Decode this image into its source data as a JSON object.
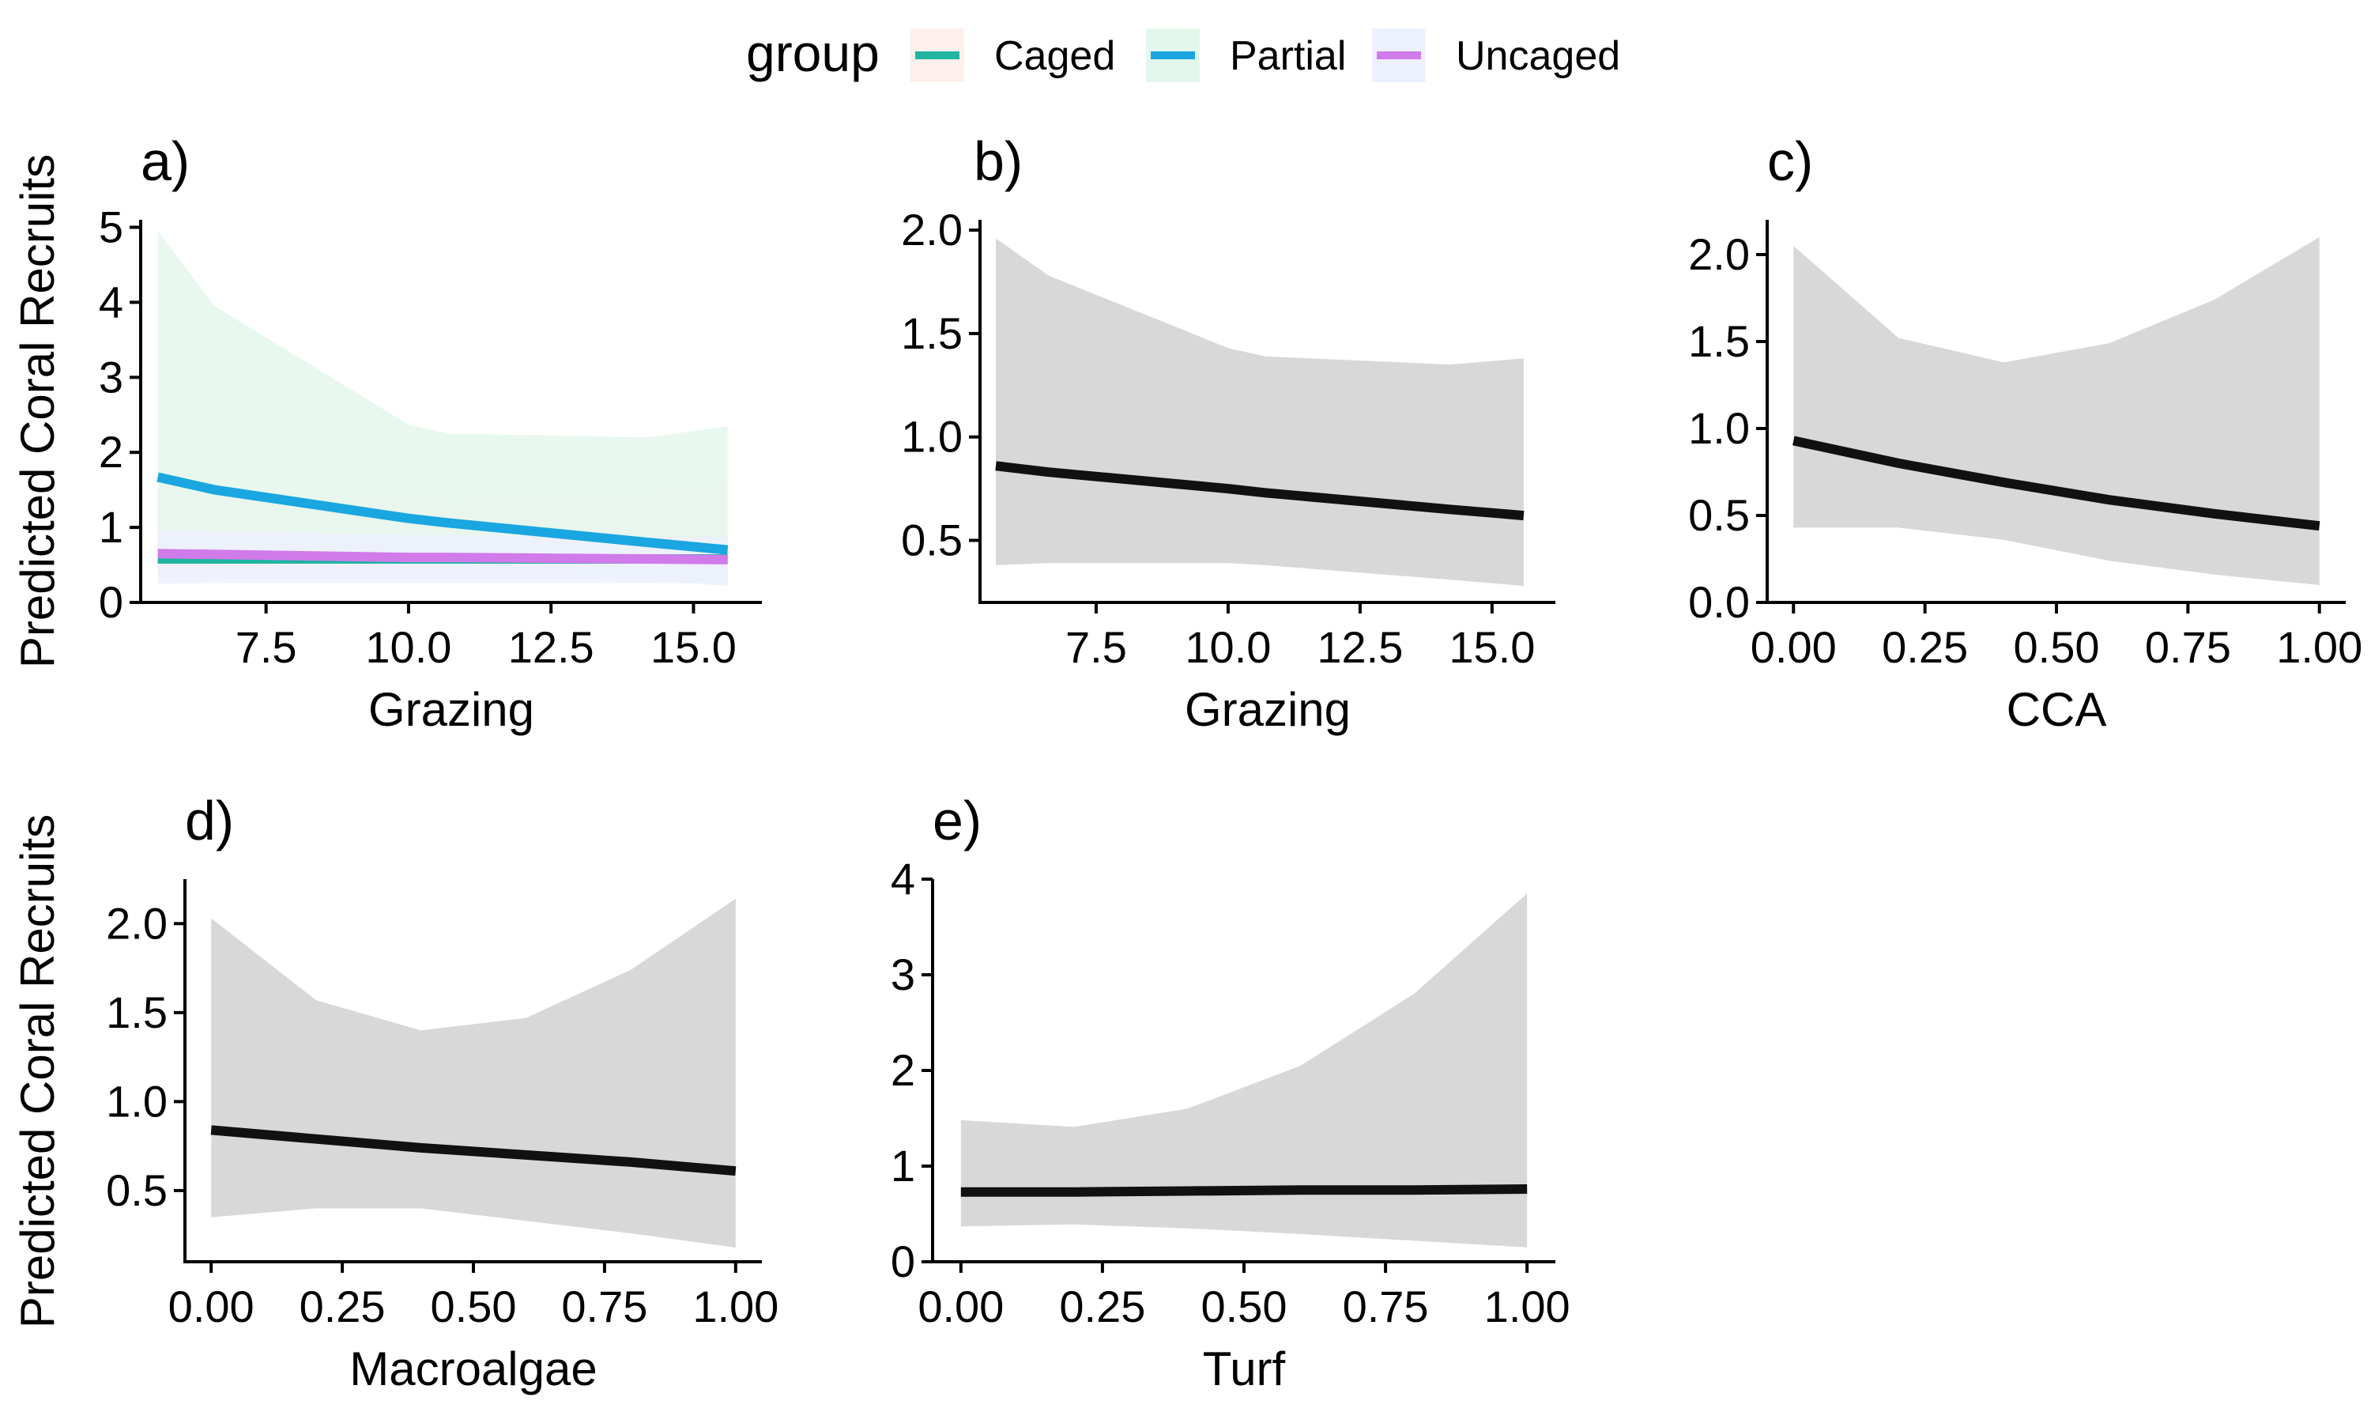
{
  "legend": {
    "title": "group",
    "entries": [
      {
        "label": "Caged",
        "line_color": "#1FB5A0",
        "fill_color": "#FDEFEC"
      },
      {
        "label": "Partial",
        "line_color": "#1AA6E0",
        "fill_color": "#E4F7EC"
      },
      {
        "label": "Uncaged",
        "line_color": "#D17AEA",
        "fill_color": "#EDF0FD"
      }
    ]
  },
  "colors": {
    "band": "#D8D8D8",
    "line": "#111111",
    "axis": "#000000"
  },
  "chart_data": [
    {
      "panel": "a)",
      "type": "line",
      "xlabel": "Grazing",
      "ylabel": "Predicted Coral Recruits",
      "xlim": [
        5.3,
        16.2
      ],
      "ylim": [
        0,
        5.1
      ],
      "xticks": [
        7.5,
        10.0,
        12.5,
        15.0
      ],
      "xtick_labels": [
        "7.5",
        "10.0",
        "12.5",
        "15.0"
      ],
      "yticks": [
        0,
        1,
        2,
        3,
        4,
        5
      ],
      "ytick_labels": [
        "0",
        "1",
        "2",
        "3",
        "4",
        "5"
      ],
      "x": [
        5.6,
        6.6,
        10.0,
        10.7,
        14.2,
        15.6
      ],
      "series": [
        {
          "name": "Caged",
          "values": [
            0.58,
            0.58,
            0.58,
            0.58,
            0.58,
            0.58
          ],
          "lower": [
            0.33,
            0.34,
            0.36,
            0.36,
            0.35,
            0.33
          ],
          "upper": [
            1.6,
            1.52,
            1.38,
            1.36,
            1.45,
            1.58
          ]
        },
        {
          "name": "Partial",
          "values": [
            1.67,
            1.5,
            1.12,
            1.06,
            0.8,
            0.7
          ],
          "lower": [
            0.62,
            0.55,
            0.5,
            0.48,
            0.3,
            0.22
          ],
          "upper": [
            4.95,
            3.95,
            2.37,
            2.25,
            2.2,
            2.35
          ]
        },
        {
          "name": "Uncaged",
          "values": [
            0.65,
            0.64,
            0.6,
            0.6,
            0.58,
            0.57
          ],
          "lower": [
            0.25,
            0.26,
            0.26,
            0.26,
            0.26,
            0.25
          ],
          "upper": [
            0.95,
            0.95,
            0.9,
            0.9,
            0.87,
            0.87
          ]
        }
      ]
    },
    {
      "panel": "b)",
      "type": "line",
      "xlabel": "Grazing",
      "ylabel": "",
      "xlim": [
        5.3,
        16.2
      ],
      "ylim": [
        0.2,
        2.05
      ],
      "xticks": [
        7.5,
        10.0,
        12.5,
        15.0
      ],
      "xtick_labels": [
        "7.5",
        "10.0",
        "12.5",
        "15.0"
      ],
      "yticks": [
        0.5,
        1.0,
        1.5,
        2.0
      ],
      "ytick_labels": [
        "0.5",
        "1.0",
        "1.5",
        "2.0"
      ],
      "x": [
        5.6,
        6.6,
        10.0,
        10.7,
        14.2,
        15.6
      ],
      "series": [
        {
          "values": [
            0.86,
            0.83,
            0.75,
            0.73,
            0.65,
            0.62
          ],
          "lower": [
            0.38,
            0.39,
            0.39,
            0.38,
            0.31,
            0.28
          ],
          "upper": [
            1.96,
            1.78,
            1.43,
            1.39,
            1.35,
            1.38
          ]
        }
      ]
    },
    {
      "panel": "c)",
      "type": "line",
      "xlabel": "CCA",
      "ylabel": "",
      "xlim": [
        -0.05,
        1.05
      ],
      "ylim": [
        0,
        2.2
      ],
      "xticks": [
        0,
        0.25,
        0.5,
        0.75,
        1.0
      ],
      "xtick_labels": [
        "0.00",
        "0.25",
        "0.50",
        "0.75",
        "1.00"
      ],
      "yticks": [
        0,
        0.5,
        1.0,
        1.5,
        2.0
      ],
      "ytick_labels": [
        "0.0",
        "0.5",
        "1.0",
        "1.5",
        "2.0"
      ],
      "x": [
        0,
        0.2,
        0.4,
        0.6,
        0.8,
        1.0
      ],
      "series": [
        {
          "values": [
            0.93,
            0.8,
            0.69,
            0.59,
            0.51,
            0.44
          ],
          "lower": [
            0.43,
            0.43,
            0.36,
            0.24,
            0.16,
            0.1
          ],
          "upper": [
            2.05,
            1.52,
            1.38,
            1.49,
            1.74,
            2.1
          ]
        }
      ]
    },
    {
      "panel": "d)",
      "type": "line",
      "xlabel": "Macroalgae",
      "ylabel": "Predicted Coral Recruits",
      "xlim": [
        -0.05,
        1.05
      ],
      "ylim": [
        0.1,
        2.25
      ],
      "xticks": [
        0,
        0.25,
        0.5,
        0.75,
        1.0
      ],
      "xtick_labels": [
        "0.00",
        "0.25",
        "0.50",
        "0.75",
        "1.00"
      ],
      "yticks": [
        0.5,
        1.0,
        1.5,
        2.0
      ],
      "ytick_labels": [
        "0.5",
        "1.0",
        "1.5",
        "2.0"
      ],
      "x": [
        0,
        0.2,
        0.4,
        0.6,
        0.8,
        1.0
      ],
      "series": [
        {
          "values": [
            0.84,
            0.79,
            0.74,
            0.7,
            0.66,
            0.61
          ],
          "lower": [
            0.35,
            0.4,
            0.4,
            0.33,
            0.26,
            0.18
          ],
          "upper": [
            2.03,
            1.57,
            1.4,
            1.47,
            1.74,
            2.14
          ]
        }
      ]
    },
    {
      "panel": "e)",
      "type": "line",
      "xlabel": "Turf",
      "ylabel": "",
      "xlim": [
        -0.05,
        1.05
      ],
      "ylim": [
        0,
        4.0
      ],
      "xticks": [
        0,
        0.25,
        0.5,
        0.75,
        1.0
      ],
      "xtick_labels": [
        "0.00",
        "0.25",
        "0.50",
        "0.75",
        "1.00"
      ],
      "yticks": [
        0,
        1,
        2,
        3,
        4
      ],
      "ytick_labels": [
        "0",
        "1",
        "2",
        "3",
        "4"
      ],
      "x": [
        0,
        0.2,
        0.4,
        0.6,
        0.8,
        1.0
      ],
      "series": [
        {
          "values": [
            0.73,
            0.73,
            0.74,
            0.75,
            0.75,
            0.76
          ],
          "lower": [
            0.37,
            0.39,
            0.35,
            0.29,
            0.22,
            0.15
          ],
          "upper": [
            1.48,
            1.41,
            1.6,
            2.05,
            2.8,
            3.85
          ]
        }
      ]
    }
  ]
}
